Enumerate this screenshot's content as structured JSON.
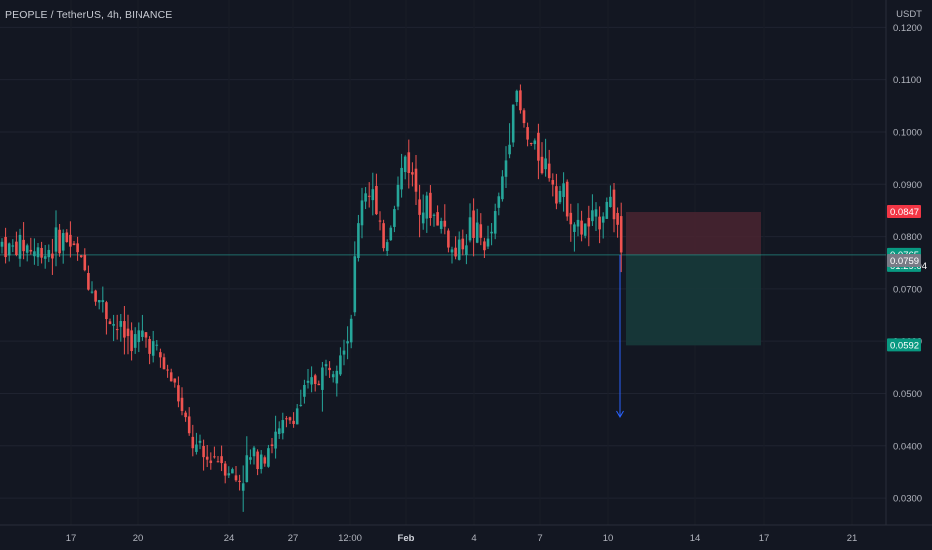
{
  "header": {
    "symbol_line": "PEOPLE / TetherUS, 4h, BINANCE",
    "quote_currency": "USDT"
  },
  "colors": {
    "background": "#131722",
    "grid": "#1f2330",
    "up": "#26a69a",
    "down": "#ef5350",
    "stop_zone": "#4a2530",
    "target_zone": "#173a3a",
    "arrow": "#2962ff",
    "entry_line": "#26a69a"
  },
  "chart_data": {
    "type": "candlestick",
    "x_axis": {
      "ticks": [
        {
          "label": "17",
          "bold": false
        },
        {
          "label": "20",
          "bold": false
        },
        {
          "label": "24",
          "bold": false
        },
        {
          "label": "27",
          "bold": false
        },
        {
          "label": "12:00",
          "bold": false
        },
        {
          "label": "Feb",
          "bold": true
        },
        {
          "label": "4",
          "bold": false
        },
        {
          "label": "7",
          "bold": false
        },
        {
          "label": "10",
          "bold": false
        },
        {
          "label": "14",
          "bold": false
        },
        {
          "label": "17",
          "bold": false
        },
        {
          "label": "21",
          "bold": false
        }
      ]
    },
    "y_axis": {
      "unit": "USDT",
      "range": [
        0.026,
        0.121
      ],
      "ticks": [
        "0.1200",
        "0.1100",
        "0.1000",
        "0.0900",
        "0.0800",
        "0.0700",
        "0.0600",
        "0.0500",
        "0.0400",
        "0.0300"
      ]
    },
    "grid": true,
    "price_tags": [
      {
        "label": "0.0847",
        "value": 0.0847,
        "color": "#f23645"
      },
      {
        "label": "0.0765",
        "value": 0.0765,
        "color": "#089981",
        "countdown": "01:29:04"
      },
      {
        "label": "0.0759",
        "value": 0.0759,
        "color": "#787b86"
      },
      {
        "label": "0.0592",
        "value": 0.0592,
        "color": "#089981"
      }
    ],
    "position": {
      "side": "short",
      "entry": 0.0765,
      "stop": 0.0847,
      "target": 0.0592
    },
    "projection_arrow_end": 0.0455,
    "anchors": [
      [
        0,
        0.079
      ],
      [
        10,
        0.0775
      ],
      [
        24,
        0.0785
      ],
      [
        38,
        0.077
      ],
      [
        52,
        0.078
      ],
      [
        64,
        0.08
      ],
      [
        76,
        0.077
      ],
      [
        86,
        0.073
      ],
      [
        96,
        0.069
      ],
      [
        108,
        0.065
      ],
      [
        120,
        0.062
      ],
      [
        132,
        0.06
      ],
      [
        144,
        0.061
      ],
      [
        154,
        0.059
      ],
      [
        164,
        0.055
      ],
      [
        176,
        0.051
      ],
      [
        186,
        0.043
      ],
      [
        196,
        0.039
      ],
      [
        206,
        0.037
      ],
      [
        216,
        0.0385
      ],
      [
        228,
        0.036
      ],
      [
        238,
        0.033
      ],
      [
        248,
        0.037
      ],
      [
        258,
        0.0385
      ],
      [
        268,
        0.04
      ],
      [
        278,
        0.042
      ],
      [
        290,
        0.045
      ],
      [
        300,
        0.048
      ],
      [
        312,
        0.052
      ],
      [
        322,
        0.054
      ],
      [
        332,
        0.056
      ],
      [
        342,
        0.06
      ],
      [
        350,
        0.062
      ],
      [
        356,
        0.078
      ],
      [
        362,
        0.088
      ],
      [
        372,
        0.09
      ],
      [
        378,
        0.08
      ],
      [
        386,
        0.079
      ],
      [
        396,
        0.088
      ],
      [
        406,
        0.096
      ],
      [
        414,
        0.09
      ],
      [
        424,
        0.086
      ],
      [
        434,
        0.084
      ],
      [
        444,
        0.082
      ],
      [
        454,
        0.076
      ],
      [
        462,
        0.079
      ],
      [
        470,
        0.082
      ],
      [
        478,
        0.08
      ],
      [
        488,
        0.078
      ],
      [
        498,
        0.086
      ],
      [
        506,
        0.095
      ],
      [
        514,
        0.108
      ],
      [
        520,
        0.104
      ],
      [
        528,
        0.098
      ],
      [
        538,
        0.096
      ],
      [
        548,
        0.093
      ],
      [
        556,
        0.09
      ],
      [
        566,
        0.087
      ],
      [
        578,
        0.081
      ],
      [
        588,
        0.082
      ],
      [
        598,
        0.083
      ],
      [
        608,
        0.088
      ],
      [
        616,
        0.084
      ],
      [
        622,
        0.0765
      ]
    ]
  }
}
